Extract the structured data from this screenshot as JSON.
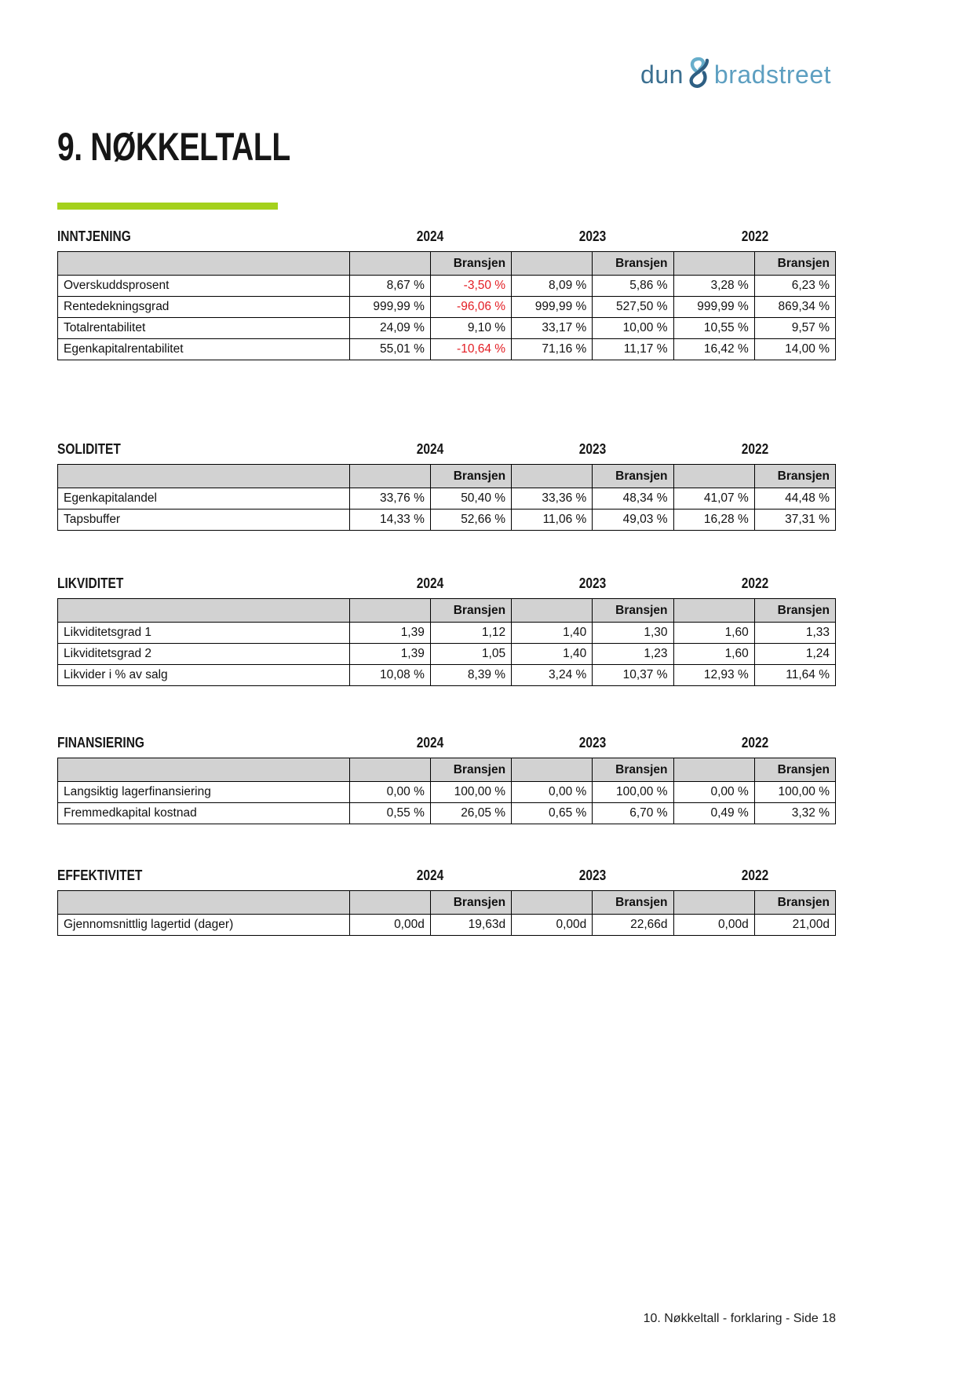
{
  "logo": {
    "dun": "dun",
    "bradstreet": "bradstreet"
  },
  "page_title": "9. NØKKELTALL",
  "years": [
    "2024",
    "2023",
    "2022"
  ],
  "bransjen_label": "Bransjen",
  "sections": [
    {
      "title": "INNTJENING",
      "rows": [
        {
          "label": "Overskuddsprosent",
          "values": [
            "8,67 %",
            "-3,50 %",
            "8,09 %",
            "5,86 %",
            "3,28 %",
            "6,23 %"
          ]
        },
        {
          "label": "Rentedekningsgrad",
          "values": [
            "999,99 %",
            "-96,06 %",
            "999,99 %",
            "527,50 %",
            "999,99 %",
            "869,34 %"
          ]
        },
        {
          "label": "Totalrentabilitet",
          "values": [
            "24,09 %",
            "9,10 %",
            "33,17 %",
            "10,00 %",
            "10,55 %",
            "9,57 %"
          ]
        },
        {
          "label": "Egenkapitalrentabilitet",
          "values": [
            "55,01 %",
            "-10,64 %",
            "71,16 %",
            "11,17 %",
            "16,42 %",
            "14,00 %"
          ]
        }
      ]
    },
    {
      "title": "SOLIDITET",
      "rows": [
        {
          "label": "Egenkapitalandel",
          "values": [
            "33,76 %",
            "50,40 %",
            "33,36 %",
            "48,34 %",
            "41,07 %",
            "44,48 %"
          ]
        },
        {
          "label": "Tapsbuffer",
          "values": [
            "14,33 %",
            "52,66 %",
            "11,06 %",
            "49,03 %",
            "16,28 %",
            "37,31 %"
          ]
        }
      ]
    },
    {
      "title": "LIKVIDITET",
      "rows": [
        {
          "label": "Likviditetsgrad 1",
          "values": [
            "1,39",
            "1,12",
            "1,40",
            "1,30",
            "1,60",
            "1,33"
          ]
        },
        {
          "label": "Likviditetsgrad 2",
          "values": [
            "1,39",
            "1,05",
            "1,40",
            "1,23",
            "1,60",
            "1,24"
          ]
        },
        {
          "label": "Likvider i % av salg",
          "values": [
            "10,08 %",
            "8,39 %",
            "3,24 %",
            "10,37 %",
            "12,93 %",
            "11,64 %"
          ]
        }
      ]
    },
    {
      "title": "FINANSIERING",
      "rows": [
        {
          "label": "Langsiktig lagerfinansiering",
          "values": [
            "0,00 %",
            "100,00 %",
            "0,00 %",
            "100,00 %",
            "0,00 %",
            "100,00 %"
          ]
        },
        {
          "label": "Fremmedkapital kostnad",
          "values": [
            "0,55 %",
            "26,05 %",
            "0,65 %",
            "6,70 %",
            "0,49 %",
            "3,32 %"
          ]
        }
      ]
    },
    {
      "title": "EFFEKTIVITET",
      "rows": [
        {
          "label": "Gjennomsnittlig lagertid (dager)",
          "values": [
            "0,00d",
            "19,63d",
            "0,00d",
            "22,66d",
            "0,00d",
            "21,00d"
          ]
        }
      ]
    }
  ],
  "footer": "10. Nøkkeltall - forklaring - Side 18",
  "colors": {
    "accent_green": "#a4d11c",
    "negative_red": "#e31e24",
    "table_header_gray": "#d2d2d2",
    "logo_dun_blue": "#3c7091",
    "logo_bradstreet_blue": "#5d9fc1",
    "logo_amp_dark": "#2e5f83",
    "logo_amp_light": "#67aecb"
  }
}
